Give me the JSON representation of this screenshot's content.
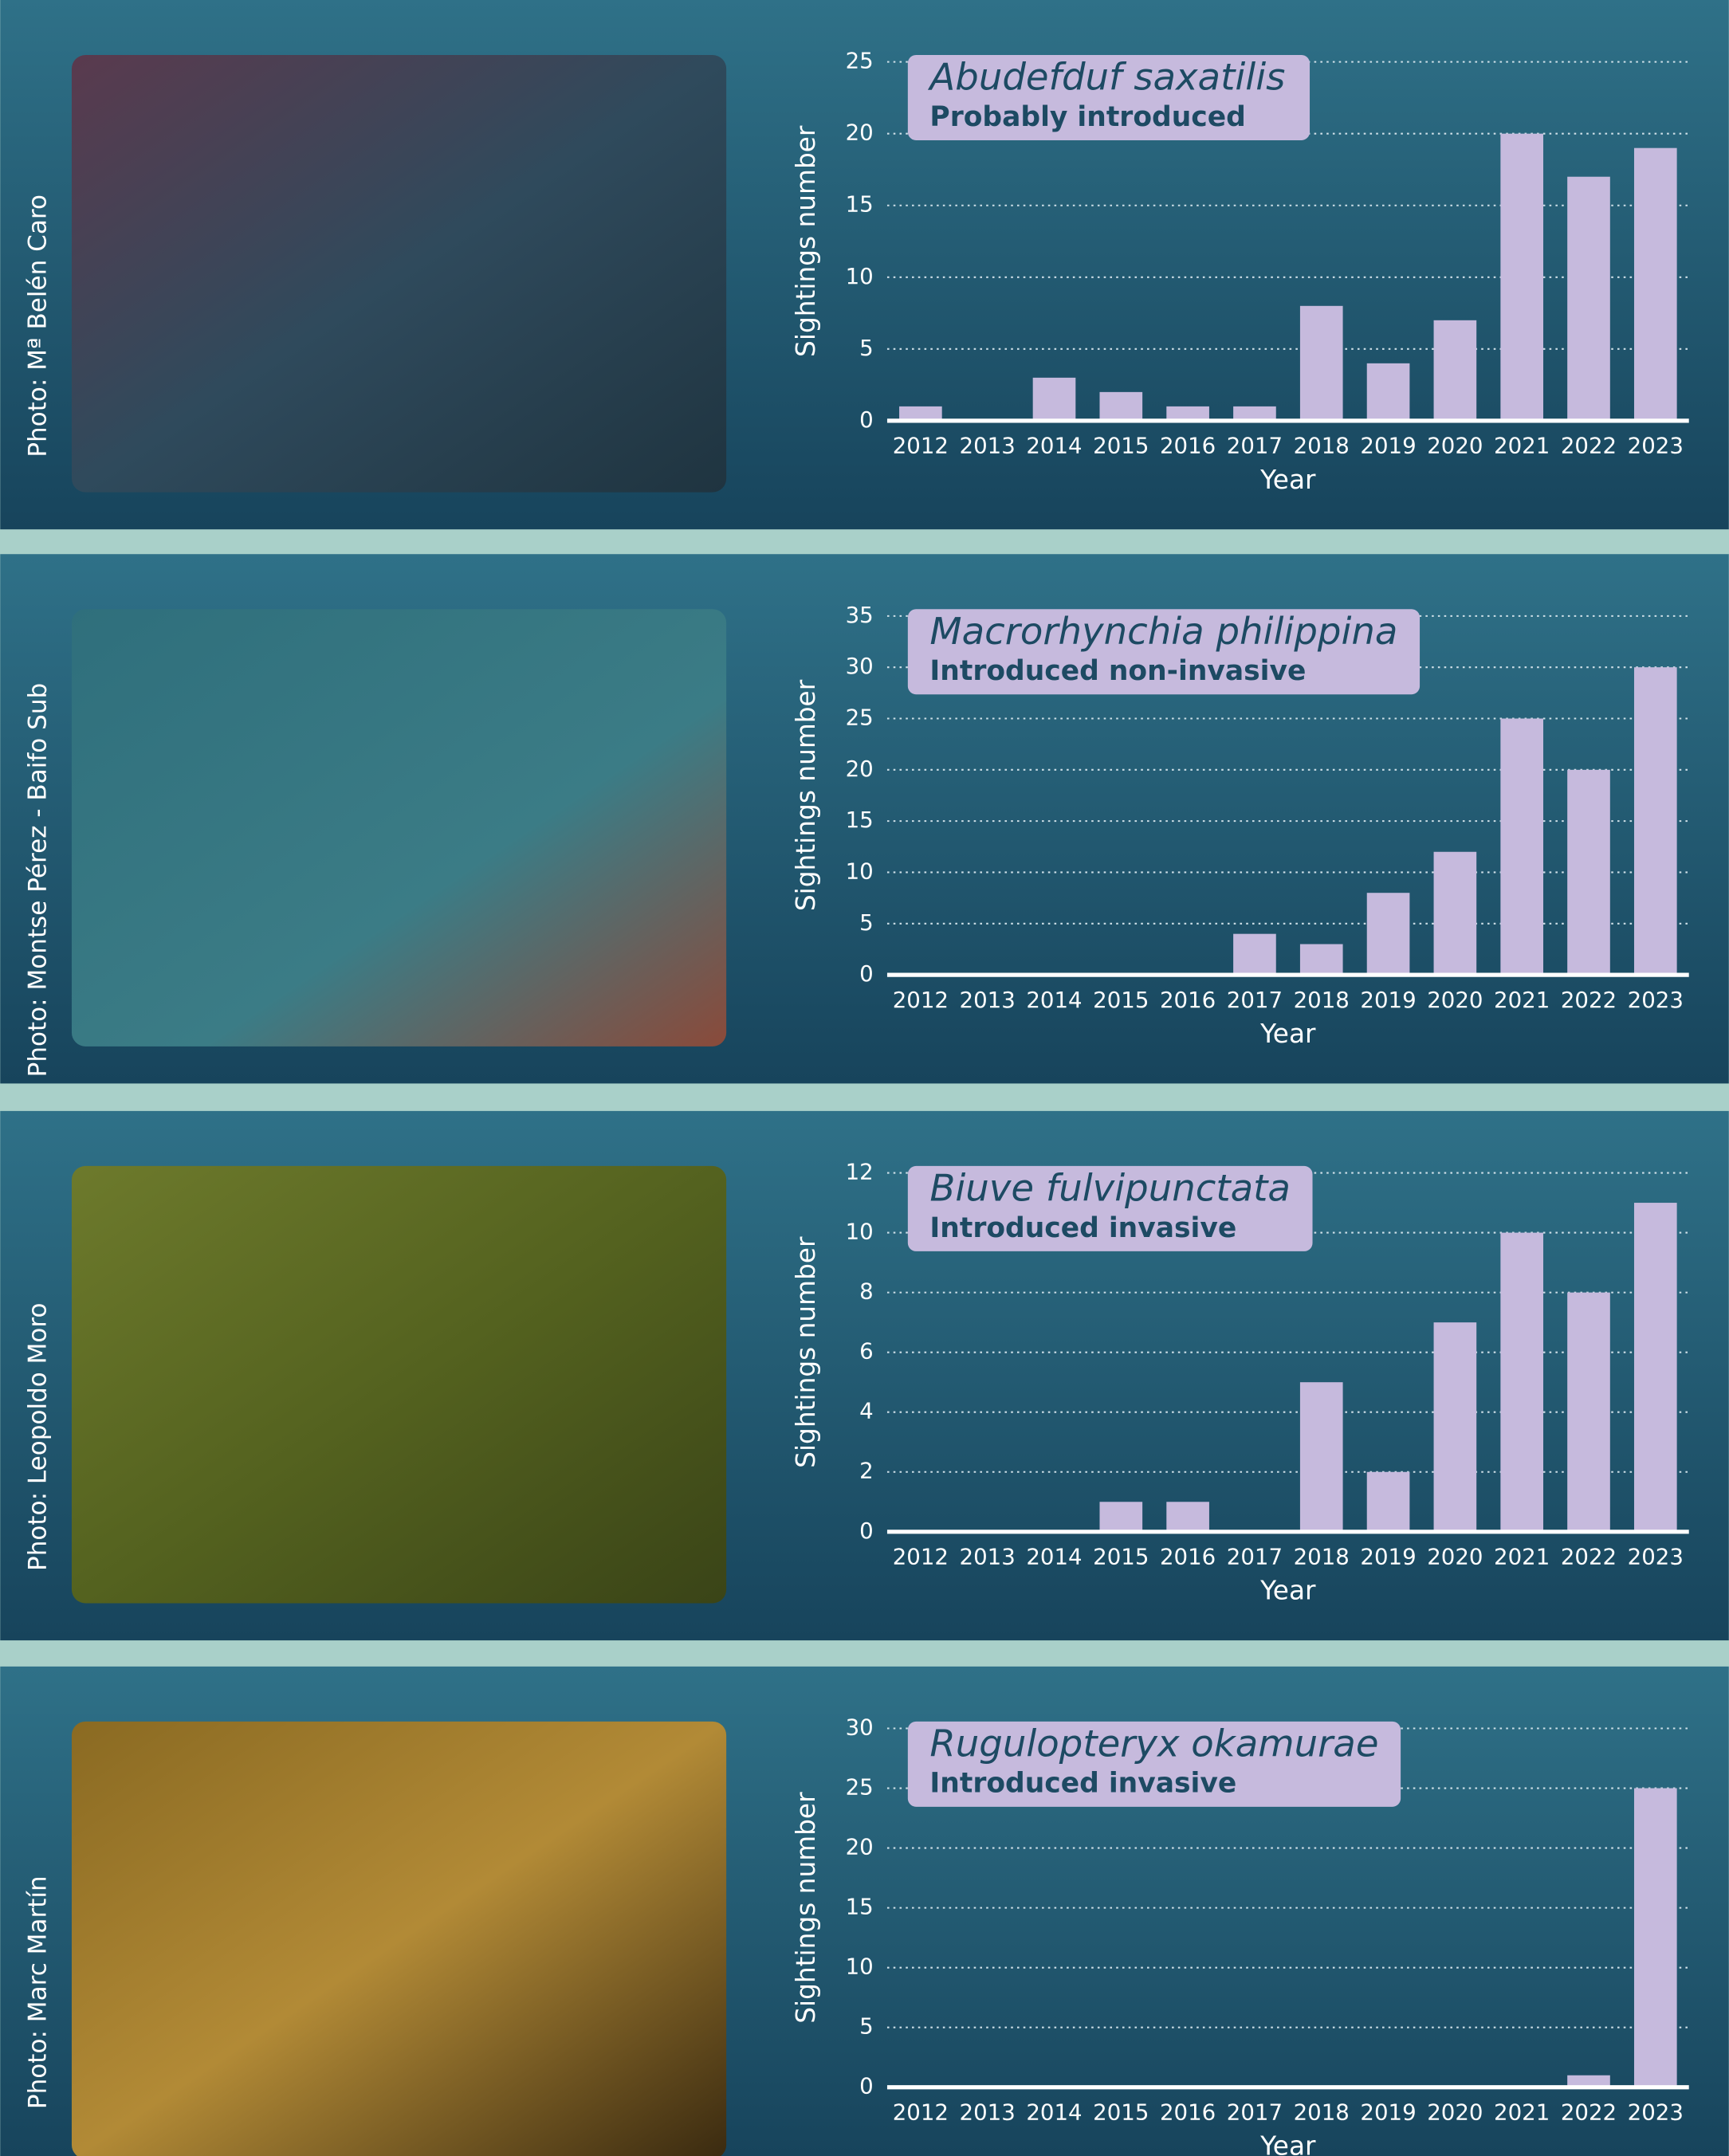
{
  "chart_data": [
    {
      "type": "bar",
      "title": "Abudefduf saxatilis",
      "subtitle": "Probably introduced",
      "photo_credit": "Photo: Mª Belén Caro",
      "y_label": "Sightings number",
      "x_label": "Year",
      "categories": [
        "2012",
        "2013",
        "2014",
        "2015",
        "2016",
        "2017",
        "2018",
        "2019",
        "2020",
        "2021",
        "2022",
        "2023"
      ],
      "values": [
        1,
        0,
        3,
        2,
        1,
        1,
        8,
        4,
        7,
        20,
        17,
        19
      ],
      "color": "#c6badd",
      "ylim": [
        0,
        25
      ],
      "yticks": [
        0,
        5,
        10,
        15,
        20,
        25
      ],
      "grid": true
    },
    {
      "type": "bar",
      "title": "Macrorhynchia philippina",
      "subtitle": "Introduced non-invasive",
      "photo_credit": "Photo: Montse Pérez - Baifo Sub",
      "y_label": "Sightings number",
      "x_label": "Year",
      "categories": [
        "2012",
        "2013",
        "2014",
        "2015",
        "2016",
        "2017",
        "2018",
        "2019",
        "2020",
        "2021",
        "2022",
        "2023"
      ],
      "values": [
        0,
        0,
        0,
        0,
        0,
        4,
        3,
        8,
        12,
        25,
        20,
        30
      ],
      "color": "#c6badd",
      "ylim": [
        0,
        35
      ],
      "yticks": [
        0,
        5,
        10,
        15,
        20,
        25,
        30,
        35
      ],
      "grid": true
    },
    {
      "type": "bar",
      "title": "Biuve fulvipunctata",
      "subtitle": "Introduced invasive",
      "photo_credit": "Photo: Leopoldo Moro",
      "y_label": "Sightings number",
      "x_label": "Year",
      "categories": [
        "2012",
        "2013",
        "2014",
        "2015",
        "2016",
        "2017",
        "2018",
        "2019",
        "2020",
        "2021",
        "2022",
        "2023"
      ],
      "values": [
        0,
        0,
        0,
        1,
        1,
        0,
        5,
        2,
        7,
        10,
        8,
        11
      ],
      "color": "#c6badd",
      "ylim": [
        0,
        12
      ],
      "yticks": [
        0,
        2,
        4,
        6,
        8,
        10,
        12
      ],
      "grid": true
    },
    {
      "type": "bar",
      "title": "Rugulopteryx okamurae",
      "subtitle": "Introduced invasive",
      "photo_credit": "Photo: Marc Martín",
      "y_label": "Sightings number",
      "x_label": "Year",
      "categories": [
        "2012",
        "2013",
        "2014",
        "2015",
        "2016",
        "2017",
        "2018",
        "2019",
        "2020",
        "2021",
        "2022",
        "2023"
      ],
      "values": [
        0,
        0,
        0,
        0,
        0,
        0,
        0,
        0,
        0,
        0,
        1,
        25
      ],
      "color": "#c6badd",
      "ylim": [
        0,
        30
      ],
      "yticks": [
        0,
        5,
        10,
        15,
        20,
        25,
        30
      ],
      "grid": true
    }
  ]
}
